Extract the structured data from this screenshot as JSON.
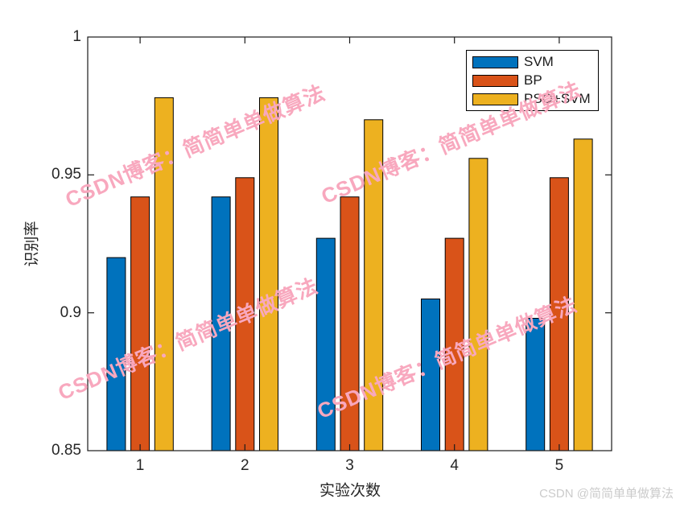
{
  "watermark": {
    "text": "CSDN博客：简简单单做算法",
    "color": "#f8a8be"
  },
  "footer": {
    "credit": "CSDN @简简单单做算法"
  },
  "chart_data": {
    "type": "bar",
    "title": "",
    "xlabel": "实验次数",
    "ylabel": "识别率",
    "categories": [
      "1",
      "2",
      "3",
      "4",
      "5"
    ],
    "series": [
      {
        "name": "SVM",
        "color": "#0072BD",
        "values": [
          0.92,
          0.942,
          0.927,
          0.905,
          0.898
        ]
      },
      {
        "name": "BP",
        "color": "#D95319",
        "values": [
          0.942,
          0.949,
          0.942,
          0.927,
          0.949
        ]
      },
      {
        "name": "PSO+SVM",
        "color": "#EDB120",
        "values": [
          0.978,
          0.978,
          0.97,
          0.956,
          0.963
        ]
      }
    ],
    "ylim": [
      0.85,
      1.0
    ],
    "yticks": [
      0.85,
      0.9,
      0.95,
      1.0
    ],
    "ytick_labels": [
      "0.85",
      "0.9",
      "0.95",
      "1"
    ],
    "legend_position": "northeast",
    "grid": false,
    "bar_edge_color": "#000000",
    "axis_color": "#1a1a1a"
  }
}
